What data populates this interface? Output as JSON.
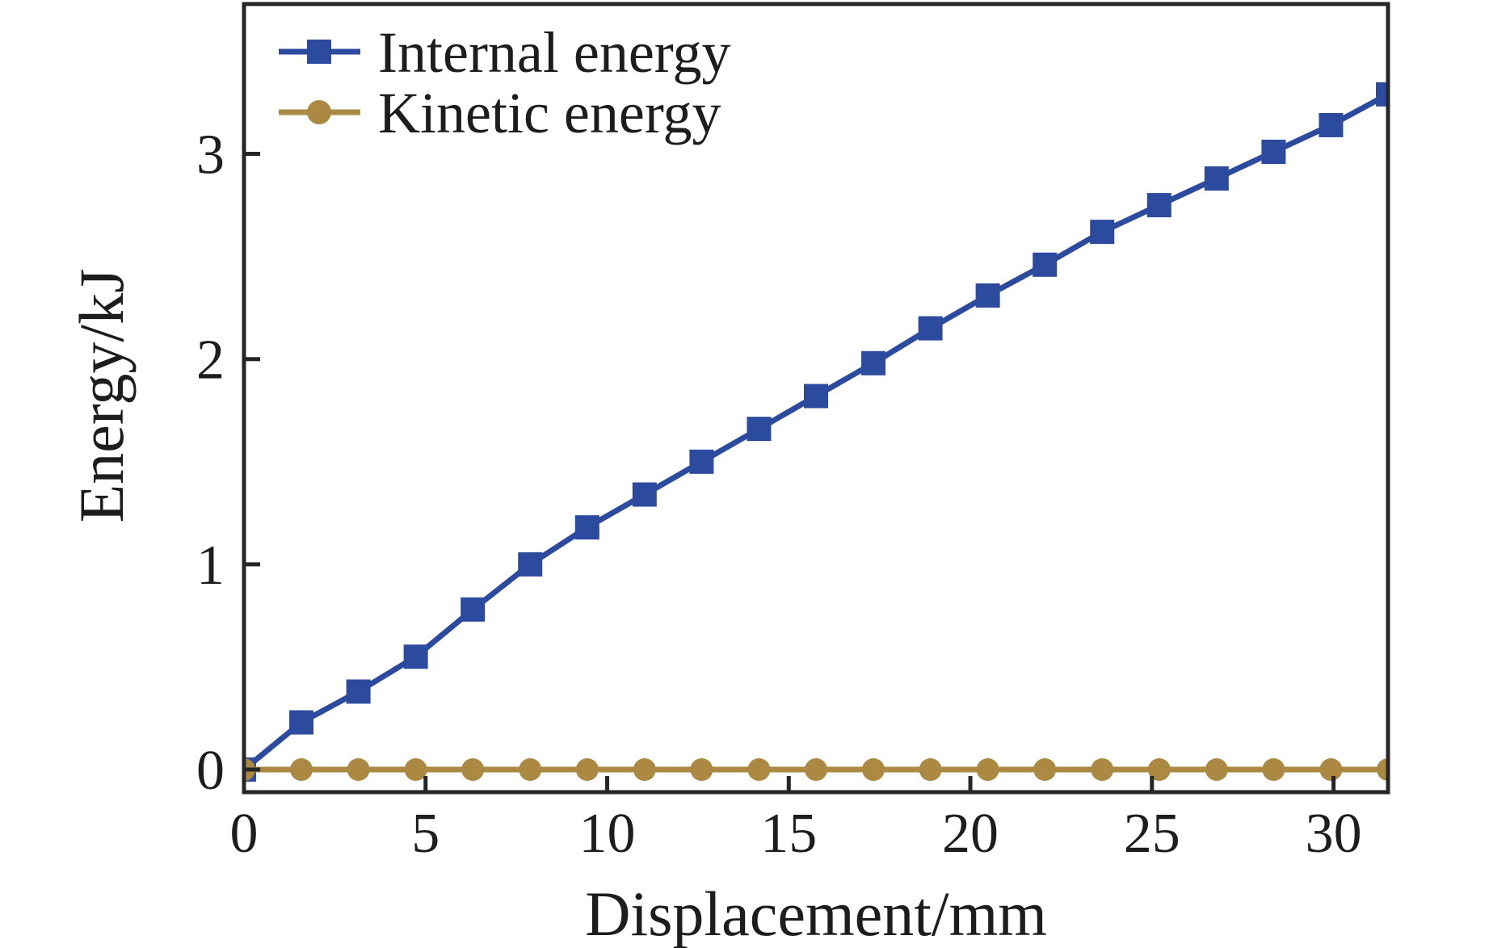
{
  "figure": {
    "background": "#ffffff"
  },
  "chart_data": {
    "type": "line",
    "title": "",
    "xlabel": "Displacement/mm",
    "ylabel": "Energy/kJ",
    "xlim": [
      0,
      31.5
    ],
    "ylim": [
      -0.11,
      3.73
    ],
    "x_ticks": [
      0,
      5,
      10,
      15,
      20,
      25,
      30
    ],
    "y_ticks": [
      0,
      1,
      2,
      3
    ],
    "grid": false,
    "legend_position": "top-left-inside",
    "axis_color": "#262626",
    "text_color": "#1d1d1d",
    "x": [
      0,
      1.58,
      3.15,
      4.73,
      6.3,
      7.88,
      9.45,
      11.03,
      12.6,
      14.18,
      15.75,
      17.33,
      18.9,
      20.48,
      22.05,
      23.63,
      25.2,
      26.78,
      28.35,
      29.93,
      31.5
    ],
    "series": [
      {
        "name": "Internal energy",
        "color": "#2d4b9e",
        "marker": "square",
        "values": [
          0,
          0.23,
          0.38,
          0.55,
          0.78,
          1.0,
          1.18,
          1.34,
          1.5,
          1.66,
          1.82,
          1.98,
          2.15,
          2.31,
          2.46,
          2.62,
          2.75,
          2.88,
          3.01,
          3.14,
          3.29
        ]
      },
      {
        "name": "Kinetic energy",
        "color": "#ab8942",
        "marker": "circle",
        "values": [
          0,
          0,
          0,
          0,
          0,
          0,
          0,
          0,
          0,
          0,
          0,
          0,
          0,
          0,
          0,
          0,
          0,
          0,
          0,
          0,
          0
        ]
      }
    ]
  }
}
